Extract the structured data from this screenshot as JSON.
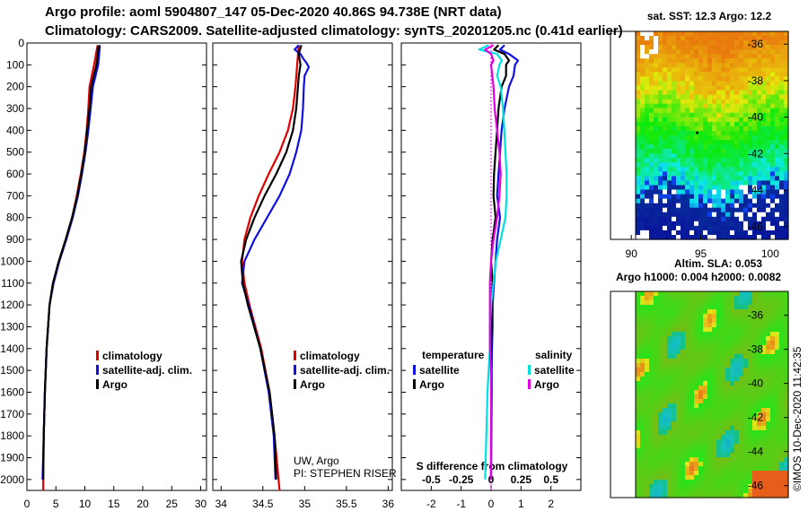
{
  "header": {
    "title_line1": "Argo profile: aoml 5904807_147 05-Dec-2020 40.86S 94.738E (NRT data)",
    "title_line2": "Climatology: CARS2009. Satellite-adjusted climatology: synTS_20201205.nc (0.41d earlier)"
  },
  "colors": {
    "climatology": "#e00000",
    "satellite": "#1010e0",
    "argo": "#000000",
    "sat_salinity": "#00e0e0",
    "argo_salinity": "#e000e0"
  },
  "chart_data": [
    {
      "type": "line",
      "name": "temperature-profile",
      "ylim": [
        2050,
        0
      ],
      "yticks": [
        0,
        100,
        200,
        300,
        400,
        500,
        600,
        700,
        800,
        900,
        1000,
        1100,
        1200,
        1300,
        1400,
        1500,
        1600,
        1700,
        1800,
        1900,
        2000
      ],
      "xlim": [
        0,
        31
      ],
      "xticks": [
        0,
        5,
        10,
        15,
        20,
        25,
        30
      ],
      "legend": [
        "climatology",
        "satellite-adj. clim.",
        "Argo"
      ],
      "series": [
        {
          "name": "climatology",
          "depth": [
            10,
            100,
            200,
            300,
            400,
            500,
            600,
            700,
            800,
            900,
            1000,
            1100,
            1200,
            1400,
            1600,
            1800,
            2050
          ],
          "values": [
            12.2,
            11.6,
            10.8,
            10.6,
            10.3,
            9.9,
            9.3,
            8.6,
            7.8,
            6.7,
            5.5,
            4.5,
            3.9,
            3.4,
            3.1,
            2.9,
            2.8
          ]
        },
        {
          "name": "satellite-adj. clim.",
          "depth": [
            10,
            100,
            200,
            300,
            400,
            500,
            600,
            700,
            800,
            900,
            1000,
            1100,
            1200,
            1400,
            1600,
            1800,
            2000
          ],
          "values": [
            12.6,
            12.3,
            11.4,
            11.0,
            10.6,
            10.1,
            9.5,
            8.8,
            7.9,
            6.8,
            5.6,
            4.6,
            3.9,
            3.4,
            3.1,
            2.9,
            2.7
          ]
        },
        {
          "name": "Argo",
          "depth": [
            10,
            100,
            200,
            300,
            400,
            500,
            600,
            700,
            800,
            900,
            1000,
            1100,
            1200,
            1400,
            1600,
            1800,
            2000
          ],
          "values": [
            12.4,
            12.0,
            11.1,
            10.8,
            10.4,
            10.0,
            9.4,
            8.7,
            7.8,
            6.7,
            5.5,
            4.5,
            3.9,
            3.4,
            3.1,
            2.9,
            2.8
          ]
        }
      ]
    },
    {
      "type": "line",
      "name": "salinity-profile",
      "ylim": [
        2050,
        0
      ],
      "xlim": [
        33.9,
        36.05
      ],
      "xticks": [
        34,
        34.5,
        35,
        35.5,
        36
      ],
      "xtick_labels": [
        "34",
        "34.5",
        "35",
        "35.5",
        "36"
      ],
      "legend": [
        "climatology",
        "satellite-adj. clim.",
        "Argo"
      ],
      "annotation_line1": "UW, Argo",
      "annotation_line2": "PI: STEPHEN RISER",
      "series": [
        {
          "name": "climatology",
          "depth": [
            10,
            100,
            200,
            300,
            400,
            500,
            600,
            700,
            800,
            900,
            1000,
            1100,
            1200,
            1400,
            1600,
            1800,
            2050
          ],
          "values": [
            34.93,
            34.91,
            34.89,
            34.86,
            34.8,
            34.7,
            34.57,
            34.45,
            34.35,
            34.28,
            34.25,
            34.28,
            34.34,
            34.48,
            34.58,
            34.64,
            34.7
          ]
        },
        {
          "name": "satellite-adj. clim.",
          "depth": [
            10,
            30,
            50,
            70,
            90,
            110,
            150,
            200,
            300,
            400,
            500,
            600,
            700,
            800,
            900,
            1000,
            1100,
            1200,
            1400,
            1600,
            1800,
            2000
          ],
          "values": [
            34.93,
            34.88,
            34.95,
            34.98,
            35.02,
            35.05,
            35.0,
            34.99,
            34.98,
            34.96,
            34.9,
            34.82,
            34.7,
            34.55,
            34.4,
            34.28,
            34.25,
            34.33,
            34.47,
            34.57,
            34.63,
            34.65
          ]
        },
        {
          "name": "Argo",
          "depth": [
            10,
            50,
            100,
            150,
            200,
            300,
            400,
            500,
            600,
            700,
            800,
            900,
            1000,
            1100,
            1200,
            1400,
            1600,
            1800,
            2000
          ],
          "values": [
            34.96,
            34.93,
            34.95,
            34.93,
            34.92,
            34.9,
            34.86,
            34.78,
            34.66,
            34.52,
            34.4,
            34.3,
            34.24,
            34.26,
            34.32,
            34.47,
            34.58,
            34.64,
            34.66
          ]
        }
      ]
    },
    {
      "type": "line",
      "name": "difference-from-climatology",
      "ylim": [
        2050,
        0
      ],
      "xlim": [
        -3.0,
        3.0
      ],
      "xticks_top": [
        -0.5,
        -0.25,
        0,
        0.25,
        0.5
      ],
      "xtick_top_labels": [
        "-0.5",
        "-0.25",
        "0",
        "0.25",
        "0.5"
      ],
      "xticks_bottom": [
        -2,
        -1,
        0,
        1,
        2
      ],
      "xtick_bottom_labels": [
        "-2",
        "-1",
        "0",
        "1",
        "2"
      ],
      "xlabel": "S difference from climatology",
      "legend_temperature_title": "temperature",
      "legend_salinity_title": "salinity",
      "legend_temperature": [
        "satellite",
        "Argo"
      ],
      "legend_salinity": [
        "satellite",
        "Argo"
      ],
      "series": [
        {
          "name": "temperature satellite",
          "depth": [
            10,
            30,
            50,
            80,
            100,
            150,
            200,
            300,
            400,
            500,
            600,
            700,
            800,
            900,
            1000,
            1100,
            1200,
            1300,
            1400,
            1500,
            1600,
            1800,
            2000
          ],
          "values": [
            0.45,
            0.3,
            0.6,
            0.9,
            0.8,
            0.75,
            0.6,
            0.45,
            0.35,
            0.3,
            0.25,
            0.2,
            0.3,
            0.2,
            0.15,
            0.1,
            0.05,
            0.05,
            0.03,
            0.02,
            0.02,
            0.01,
            0.0
          ]
        },
        {
          "name": "temperature Argo",
          "depth": [
            10,
            30,
            50,
            80,
            100,
            150,
            200,
            300,
            400,
            500,
            600,
            700,
            800,
            900,
            1000,
            1100,
            1200,
            1300,
            1400,
            1500,
            1600,
            1800,
            2000
          ],
          "values": [
            0.25,
            0.1,
            0.45,
            0.6,
            0.5,
            0.5,
            0.35,
            0.25,
            0.2,
            0.15,
            0.1,
            0.08,
            0.15,
            0.05,
            0.0,
            0.05,
            0.02,
            0.02,
            0.0,
            0.0,
            0.01,
            0.0,
            0.0
          ]
        },
        {
          "name": "salinity satellite",
          "depth": [
            10,
            30,
            50,
            80,
            100,
            150,
            200,
            300,
            400,
            500,
            600,
            700,
            800,
            900,
            1000,
            1100,
            1200,
            1300,
            1400,
            1500,
            1600,
            1800,
            2000
          ],
          "values": [
            -0.02,
            -0.1,
            0.05,
            0.09,
            0.07,
            0.05,
            0.08,
            0.1,
            0.11,
            0.12,
            0.13,
            0.13,
            0.12,
            0.08,
            0.04,
            0.02,
            0.0,
            -0.01,
            -0.01,
            -0.02,
            -0.03,
            -0.04,
            -0.05
          ]
        },
        {
          "name": "salinity Argo",
          "depth": [
            10,
            30,
            50,
            80,
            100,
            150,
            200,
            300,
            400,
            500,
            600,
            700,
            800,
            900,
            1000,
            1100,
            1200,
            1300,
            1400,
            1500,
            1600,
            1800,
            2000
          ],
          "values": [
            0.02,
            -0.05,
            0.0,
            0.02,
            0.0,
            0.01,
            0.02,
            0.03,
            0.05,
            0.07,
            0.08,
            0.07,
            0.05,
            0.02,
            0.0,
            -0.01,
            -0.01,
            -0.01,
            -0.01,
            0.0,
            0.0,
            0.0,
            0.0
          ]
        }
      ]
    },
    {
      "type": "heatmap",
      "name": "sat-sst-map",
      "title": "sat. SST: 12.3 Argo: 12.2",
      "xlim": [
        88.5,
        101.3
      ],
      "ylim": [
        -46.7,
        -35.3
      ],
      "xticks": [
        90,
        95,
        100
      ],
      "xtick_labels": [
        "90",
        "95",
        "100"
      ],
      "yticks": [
        -36,
        -38,
        -40,
        -42,
        -44,
        -46
      ],
      "ytick_labels": [
        "-36",
        "-38",
        "-40",
        "-42",
        "-44",
        "-46"
      ]
    },
    {
      "type": "heatmap",
      "name": "altim-sla-map",
      "title_line1": "Altim. SLA: 0.053",
      "title_line2": "Argo h1000: 0.004 h2000: 0.0082",
      "xlim": [
        88.5,
        101.3
      ],
      "ylim": [
        -46.7,
        -34.6
      ],
      "yticks": [
        -36,
        -38,
        -40,
        -42,
        -44,
        -46
      ],
      "ytick_labels": [
        "-36",
        "-38",
        "-40",
        "-42",
        "-44",
        "-46"
      ]
    }
  ],
  "footer": {
    "watermark": "©IMOS 10-Dec-2020 11:42:35"
  }
}
